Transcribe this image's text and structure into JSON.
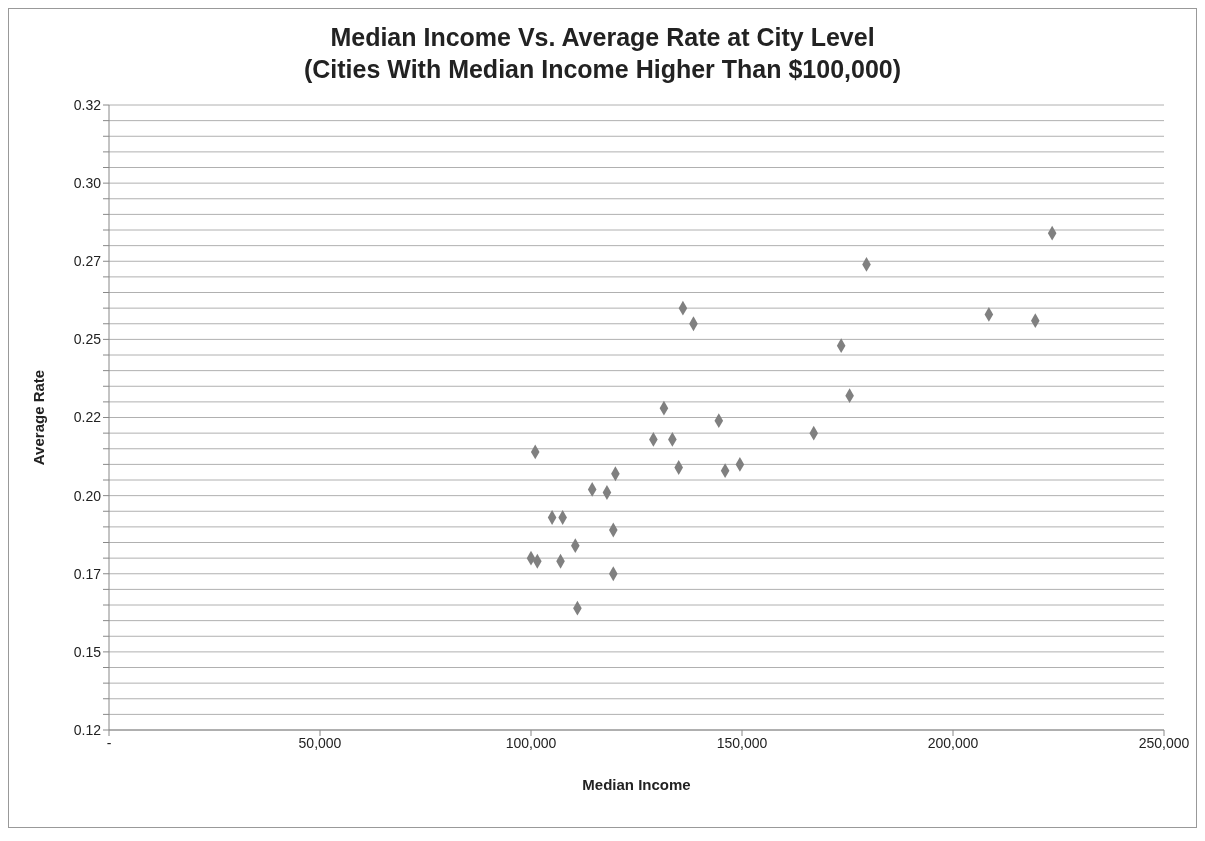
{
  "chart_data": {
    "type": "scatter",
    "title": "Median Income Vs. Average Rate at City Level\n(Cities With Median Income Higher Than $100,000)",
    "xlabel": "Median Income",
    "ylabel": "Average Rate",
    "series": [
      {
        "color": "#808080",
        "x": [
          223500,
          179500,
          208500,
          219500,
          136000,
          138500,
          173500,
          175500,
          131500,
          144500,
          167000,
          129000,
          133500,
          101000,
          135000,
          149500,
          146000,
          120000,
          114500,
          118000,
          105000,
          107500,
          110500,
          119500,
          100000,
          101500,
          107000,
          119500,
          111000
        ],
        "values": [
          0.284,
          0.274,
          0.258,
          0.256,
          0.26,
          0.255,
          0.248,
          0.232,
          0.228,
          0.224,
          0.22,
          0.218,
          0.218,
          0.214,
          0.209,
          0.21,
          0.208,
          0.207,
          0.202,
          0.201,
          0.193,
          0.193,
          0.184,
          0.189,
          0.18,
          0.179,
          0.179,
          0.175,
          0.164
        ]
      }
    ],
    "xlim": [
      0,
      250000
    ],
    "xticks": [
      {
        "value": 0,
        "label": "-"
      },
      {
        "value": 50000,
        "label": "50,000"
      },
      {
        "value": 100000,
        "label": "100,000"
      },
      {
        "value": 150000,
        "label": "150,000"
      },
      {
        "value": 200000,
        "label": "200,000"
      },
      {
        "value": 250000,
        "label": "250,000"
      }
    ],
    "ylim": [
      0.125,
      0.325
    ],
    "yticks": [
      {
        "value": 0.125,
        "label": "0.12"
      },
      {
        "value": 0.13,
        "label": null
      },
      {
        "value": 0.135,
        "label": null
      },
      {
        "value": 0.14,
        "label": null
      },
      {
        "value": 0.145,
        "label": null
      },
      {
        "value": 0.15,
        "label": "0.15"
      },
      {
        "value": 0.155,
        "label": null
      },
      {
        "value": 0.16,
        "label": null
      },
      {
        "value": 0.165,
        "label": null
      },
      {
        "value": 0.17,
        "label": null
      },
      {
        "value": 0.175,
        "label": "0.17"
      },
      {
        "value": 0.18,
        "label": null
      },
      {
        "value": 0.185,
        "label": null
      },
      {
        "value": 0.19,
        "label": null
      },
      {
        "value": 0.195,
        "label": null
      },
      {
        "value": 0.2,
        "label": "0.20"
      },
      {
        "value": 0.205,
        "label": null
      },
      {
        "value": 0.21,
        "label": null
      },
      {
        "value": 0.215,
        "label": null
      },
      {
        "value": 0.22,
        "label": null
      },
      {
        "value": 0.225,
        "label": "0.22"
      },
      {
        "value": 0.23,
        "label": null
      },
      {
        "value": 0.235,
        "label": null
      },
      {
        "value": 0.24,
        "label": null
      },
      {
        "value": 0.245,
        "label": null
      },
      {
        "value": 0.25,
        "label": "0.25"
      },
      {
        "value": 0.255,
        "label": null
      },
      {
        "value": 0.26,
        "label": null
      },
      {
        "value": 0.265,
        "label": null
      },
      {
        "value": 0.27,
        "label": null
      },
      {
        "value": 0.275,
        "label": "0.27"
      },
      {
        "value": 0.28,
        "label": null
      },
      {
        "value": 0.285,
        "label": null
      },
      {
        "value": 0.29,
        "label": null
      },
      {
        "value": 0.295,
        "label": null
      },
      {
        "value": 0.3,
        "label": "0.30"
      },
      {
        "value": 0.305,
        "label": null
      },
      {
        "value": 0.31,
        "label": null
      },
      {
        "value": 0.315,
        "label": null
      },
      {
        "value": 0.32,
        "label": null
      },
      {
        "value": 0.325,
        "label": "0.32"
      }
    ],
    "grid": "y",
    "marker": "diamond"
  }
}
